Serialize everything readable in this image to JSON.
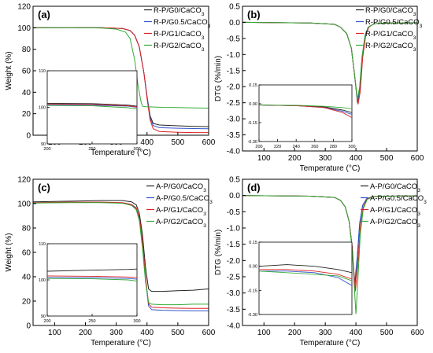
{
  "chart_data": [
    {
      "type": "line",
      "panel_label": "(a)",
      "xlabel": "Temperature (°C)",
      "ylabel": "Weight (%)",
      "xlim": [
        30,
        600
      ],
      "ylim": [
        0,
        120
      ],
      "xticks": [
        100,
        200,
        300,
        400,
        500,
        600
      ],
      "yticks": [
        0,
        20,
        40,
        60,
        80,
        100,
        120
      ],
      "legend_position": "top-right",
      "grid": false,
      "series": [
        {
          "name": "R-P/G0/CaCO3",
          "color": "#222222",
          "x": [
            30,
            150,
            250,
            320,
            345,
            360,
            375,
            390,
            400,
            410,
            420,
            440,
            500,
            550,
            600
          ],
          "y": [
            100,
            100.2,
            100,
            99.3,
            97.5,
            93,
            82,
            58,
            36,
            18,
            11,
            9.5,
            8.8,
            8.3,
            8
          ]
        },
        {
          "name": "R-P/G0.5/CaCO3",
          "color": "#3355cc",
          "x": [
            30,
            150,
            250,
            320,
            345,
            360,
            375,
            390,
            400,
            410,
            420,
            440,
            500,
            550,
            600
          ],
          "y": [
            100,
            100.2,
            100,
            99.3,
            97.5,
            93,
            82,
            58,
            36,
            16,
            9,
            7,
            6.5,
            6.2,
            6
          ]
        },
        {
          "name": "R-P/G1/CaCO3",
          "color": "#dd2222",
          "x": [
            30,
            150,
            250,
            320,
            345,
            360,
            375,
            390,
            400,
            410,
            420,
            440,
            500,
            550,
            600
          ],
          "y": [
            100,
            100.2,
            100,
            99.3,
            97.5,
            93,
            82,
            58,
            34,
            14,
            6,
            3.5,
            2.8,
            2.5,
            2.5
          ]
        },
        {
          "name": "R-P/G2/CaCO3",
          "color": "#33aa33",
          "x": [
            30,
            150,
            250,
            300,
            330,
            345,
            360,
            370,
            380,
            385,
            395,
            450,
            500,
            550,
            600
          ],
          "y": [
            100,
            100.2,
            99.8,
            98.8,
            96,
            90,
            70,
            48,
            32,
            27,
            26.5,
            26,
            25.8,
            25.5,
            25.2
          ]
        }
      ],
      "inset": {
        "xlim": [
          200,
          300
        ],
        "ylim": [
          90,
          110
        ],
        "xticks": [
          200,
          250,
          300
        ],
        "yticks": [
          90,
          100,
          110
        ],
        "series": [
          {
            "color": "#222222",
            "x": [
              200,
              250,
              290,
              300
            ],
            "y": [
              101.1,
              101,
              100.6,
              100.3
            ]
          },
          {
            "color": "#3355cc",
            "x": [
              200,
              250,
              290,
              300
            ],
            "y": [
              100.7,
              100.6,
              100.3,
              100
            ]
          },
          {
            "color": "#dd2222",
            "x": [
              200,
              250,
              290,
              300
            ],
            "y": [
              100.9,
              100.8,
              100.4,
              100.1
            ]
          },
          {
            "color": "#33aa33",
            "x": [
              200,
              250,
              290,
              300
            ],
            "y": [
              100.5,
              100.4,
              99.9,
              99.5
            ]
          }
        ]
      }
    },
    {
      "type": "line",
      "panel_label": "(b)",
      "xlabel": "Temperature (°C)",
      "ylabel": "DTG (%/min)",
      "xlim": [
        30,
        600
      ],
      "ylim": [
        -4.0,
        0.5
      ],
      "xticks": [
        100,
        200,
        300,
        400,
        500,
        600
      ],
      "yticks": [
        -4.0,
        -3.5,
        -3.0,
        -2.5,
        -2.0,
        -1.5,
        -1.0,
        -0.5,
        0.0,
        0.5
      ],
      "legend_position": "top-right",
      "grid": false,
      "series": [
        {
          "name": "R-P/G0/CaCO3",
          "color": "#222222",
          "x": [
            30,
            250,
            330,
            350,
            370,
            385,
            395,
            405,
            412,
            420,
            430,
            440,
            460,
            500,
            600
          ],
          "y": [
            0,
            -0.02,
            -0.06,
            -0.15,
            -0.35,
            -0.8,
            -1.6,
            -2.5,
            -2.1,
            -1.1,
            -0.4,
            -0.15,
            -0.04,
            -0.02,
            -0.01
          ]
        },
        {
          "name": "R-P/G0.5/CaCO3",
          "color": "#3355cc",
          "x": [
            30,
            250,
            330,
            350,
            370,
            385,
            395,
            405,
            412,
            420,
            430,
            440,
            460,
            500,
            600
          ],
          "y": [
            0,
            -0.02,
            -0.06,
            -0.15,
            -0.35,
            -0.8,
            -1.6,
            -2.45,
            -2.1,
            -1.1,
            -0.4,
            -0.15,
            -0.04,
            -0.02,
            -0.01
          ]
        },
        {
          "name": "R-P/G1/CaCO3",
          "color": "#dd2222",
          "x": [
            30,
            250,
            330,
            350,
            370,
            385,
            395,
            407,
            414,
            422,
            432,
            442,
            460,
            500,
            600
          ],
          "y": [
            0,
            -0.02,
            -0.06,
            -0.15,
            -0.35,
            -0.8,
            -1.6,
            -2.55,
            -2.15,
            -1.1,
            -0.4,
            -0.15,
            -0.04,
            -0.02,
            -0.01
          ]
        },
        {
          "name": "R-P/G2/CaCO3",
          "color": "#33aa33",
          "x": [
            30,
            250,
            330,
            350,
            370,
            385,
            395,
            405,
            412,
            420,
            430,
            440,
            460,
            500,
            600
          ],
          "y": [
            0,
            -0.02,
            -0.06,
            -0.15,
            -0.35,
            -0.8,
            -1.6,
            -2.4,
            -2.0,
            -1.05,
            -0.4,
            -0.15,
            -0.04,
            -0.02,
            -0.01
          ]
        }
      ],
      "inset": {
        "xlim": [
          200,
          300
        ],
        "ylim": [
          -0.3,
          0.15
        ],
        "xticks": [
          200,
          220,
          240,
          260,
          280,
          300
        ],
        "yticks": [
          -0.3,
          -0.15,
          0.0,
          0.15
        ],
        "series": [
          {
            "color": "#222222",
            "x": [
              200,
              240,
              270,
              290,
              300
            ],
            "y": [
              -0.01,
              -0.015,
              -0.025,
              -0.05,
              -0.07
            ]
          },
          {
            "color": "#3355cc",
            "x": [
              200,
              240,
              270,
              290,
              300
            ],
            "y": [
              -0.01,
              -0.015,
              -0.03,
              -0.06,
              -0.085
            ]
          },
          {
            "color": "#dd2222",
            "x": [
              200,
              240,
              270,
              290,
              300
            ],
            "y": [
              -0.01,
              -0.015,
              -0.03,
              -0.07,
              -0.11
            ]
          },
          {
            "color": "#33aa33",
            "x": [
              200,
              240,
              270,
              290,
              300
            ],
            "y": [
              -0.01,
              -0.012,
              -0.02,
              -0.03,
              -0.04
            ]
          }
        ]
      }
    },
    {
      "type": "line",
      "panel_label": "(c)",
      "xlabel": "Temperature (°C)",
      "ylabel": "Weight (%)",
      "xlim": [
        30,
        600
      ],
      "ylim": [
        0,
        120
      ],
      "xticks": [
        100,
        200,
        300,
        400,
        500,
        600
      ],
      "yticks": [
        0,
        20,
        40,
        60,
        80,
        100,
        120
      ],
      "legend_position": "top-right",
      "grid": false,
      "series": [
        {
          "name": "A-P/G0/CaCO3",
          "color": "#222222",
          "x": [
            30,
            150,
            250,
            320,
            350,
            365,
            375,
            385,
            395,
            405,
            415,
            450,
            500,
            550,
            600
          ],
          "y": [
            101.5,
            102,
            102.5,
            102.5,
            101.5,
            99,
            92,
            75,
            48,
            30,
            28,
            28,
            28.5,
            29,
            30
          ]
        },
        {
          "name": "A-P/G0.5/CaCO3",
          "color": "#3355cc",
          "x": [
            30,
            150,
            250,
            320,
            350,
            365,
            375,
            385,
            395,
            405,
            415,
            450,
            500,
            550,
            600
          ],
          "y": [
            100.5,
            101,
            101,
            100.5,
            99,
            96,
            88,
            68,
            38,
            16,
            13,
            12.5,
            12.2,
            12,
            12
          ]
        },
        {
          "name": "A-P/G1/CaCO3",
          "color": "#dd2222",
          "x": [
            30,
            150,
            250,
            320,
            350,
            365,
            375,
            385,
            395,
            405,
            415,
            450,
            500,
            550,
            600
          ],
          "y": [
            100.8,
            101.2,
            101.2,
            100.8,
            99.3,
            96.5,
            89,
            69,
            40,
            18,
            15,
            14.5,
            14.2,
            14,
            14
          ]
        },
        {
          "name": "A-P/G2/CaCO3",
          "color": "#33aa33",
          "x": [
            30,
            150,
            250,
            320,
            350,
            365,
            375,
            385,
            395,
            405,
            415,
            450,
            500,
            550,
            600
          ],
          "y": [
            100.5,
            100.8,
            100.8,
            100.3,
            98.5,
            95,
            86,
            64,
            36,
            19,
            17.5,
            17,
            17,
            17.5,
            17.5
          ]
        }
      ],
      "inset": {
        "xlim": [
          200,
          300
        ],
        "ylim": [
          90,
          110
        ],
        "xticks": [
          200,
          250,
          300
        ],
        "yticks": [
          90,
          100,
          110
        ],
        "series": [
          {
            "color": "#222222",
            "x": [
              200,
              250,
              290,
              300
            ],
            "y": [
              102.4,
              102.7,
              102.9,
              103
            ]
          },
          {
            "color": "#3355cc",
            "x": [
              200,
              250,
              290,
              300
            ],
            "y": [
              100.7,
              100.6,
              100.4,
              100.2
            ]
          },
          {
            "color": "#dd2222",
            "x": [
              200,
              250,
              290,
              300
            ],
            "y": [
              101.1,
              101,
              100.8,
              100.6
            ]
          },
          {
            "color": "#33aa33",
            "x": [
              200,
              250,
              290,
              300
            ],
            "y": [
              100.4,
              100.3,
              100,
              99.7
            ]
          }
        ]
      }
    },
    {
      "type": "line",
      "panel_label": "(d)",
      "xlabel": "Temperature (°C)",
      "ylabel": "DTG (%/min)",
      "xlim": [
        30,
        600
      ],
      "ylim": [
        -4.0,
        0.5
      ],
      "xticks": [
        100,
        200,
        300,
        400,
        500,
        600
      ],
      "yticks": [
        -4.0,
        -3.5,
        -3.0,
        -2.5,
        -2.0,
        -1.5,
        -1.0,
        -0.5,
        0.0,
        0.5
      ],
      "legend_position": "top-right",
      "grid": false,
      "series": [
        {
          "name": "A-P/G0/CaCO3",
          "color": "#222222",
          "x": [
            30,
            250,
            330,
            350,
            365,
            378,
            388,
            396,
            404,
            412,
            422,
            435,
            460,
            500,
            600
          ],
          "y": [
            0,
            -0.02,
            -0.06,
            -0.15,
            -0.35,
            -0.8,
            -1.6,
            -2.85,
            -2.0,
            -0.9,
            -0.3,
            -0.1,
            -0.03,
            -0.02,
            -0.01
          ]
        },
        {
          "name": "A-P/G0.5/CaCO3",
          "color": "#3355cc",
          "x": [
            30,
            250,
            330,
            350,
            365,
            378,
            388,
            396,
            404,
            412,
            422,
            435,
            460,
            500,
            600
          ],
          "y": [
            0,
            -0.02,
            -0.06,
            -0.15,
            -0.35,
            -0.8,
            -1.6,
            -2.7,
            -1.9,
            -0.85,
            -0.3,
            -0.1,
            -0.03,
            -0.02,
            -0.01
          ]
        },
        {
          "name": "A-P/G1/CaCO3",
          "color": "#dd2222",
          "x": [
            30,
            250,
            330,
            350,
            365,
            378,
            388,
            398,
            406,
            414,
            424,
            437,
            460,
            500,
            600
          ],
          "y": [
            0,
            -0.02,
            -0.06,
            -0.15,
            -0.35,
            -0.8,
            -1.6,
            -2.95,
            -2.2,
            -1.0,
            -0.35,
            -0.1,
            -0.03,
            -0.02,
            -0.01
          ]
        },
        {
          "name": "A-P/G2/CaCO3",
          "color": "#33aa33",
          "x": [
            30,
            250,
            330,
            350,
            365,
            378,
            388,
            400,
            407,
            414,
            424,
            437,
            460,
            500,
            600
          ],
          "y": [
            0,
            -0.02,
            -0.06,
            -0.15,
            -0.35,
            -0.8,
            -1.7,
            -3.65,
            -2.5,
            -1.2,
            -0.4,
            -0.12,
            -0.03,
            -0.02,
            -0.01
          ]
        }
      ],
      "inset": {
        "xlim": [
          200,
          300
        ],
        "ylim": [
          -0.3,
          0.15
        ],
        "xticks": [],
        "yticks": [
          -0.3,
          -0.15,
          0.0,
          0.15
        ],
        "series": [
          {
            "color": "#222222",
            "x": [
              200,
              230,
              260,
              285,
              300
            ],
            "y": [
              0.0,
              0.01,
              0.0,
              -0.02,
              -0.04
            ]
          },
          {
            "color": "#3355cc",
            "x": [
              200,
              230,
              260,
              285,
              300
            ],
            "y": [
              -0.03,
              -0.03,
              -0.04,
              -0.07,
              -0.12
            ]
          },
          {
            "color": "#dd2222",
            "x": [
              200,
              230,
              260,
              285,
              300
            ],
            "y": [
              -0.02,
              -0.02,
              -0.03,
              -0.05,
              -0.08
            ]
          },
          {
            "color": "#33aa33",
            "x": [
              200,
              230,
              260,
              285,
              300
            ],
            "y": [
              -0.03,
              -0.04,
              -0.05,
              -0.06,
              -0.09
            ]
          }
        ]
      }
    }
  ]
}
